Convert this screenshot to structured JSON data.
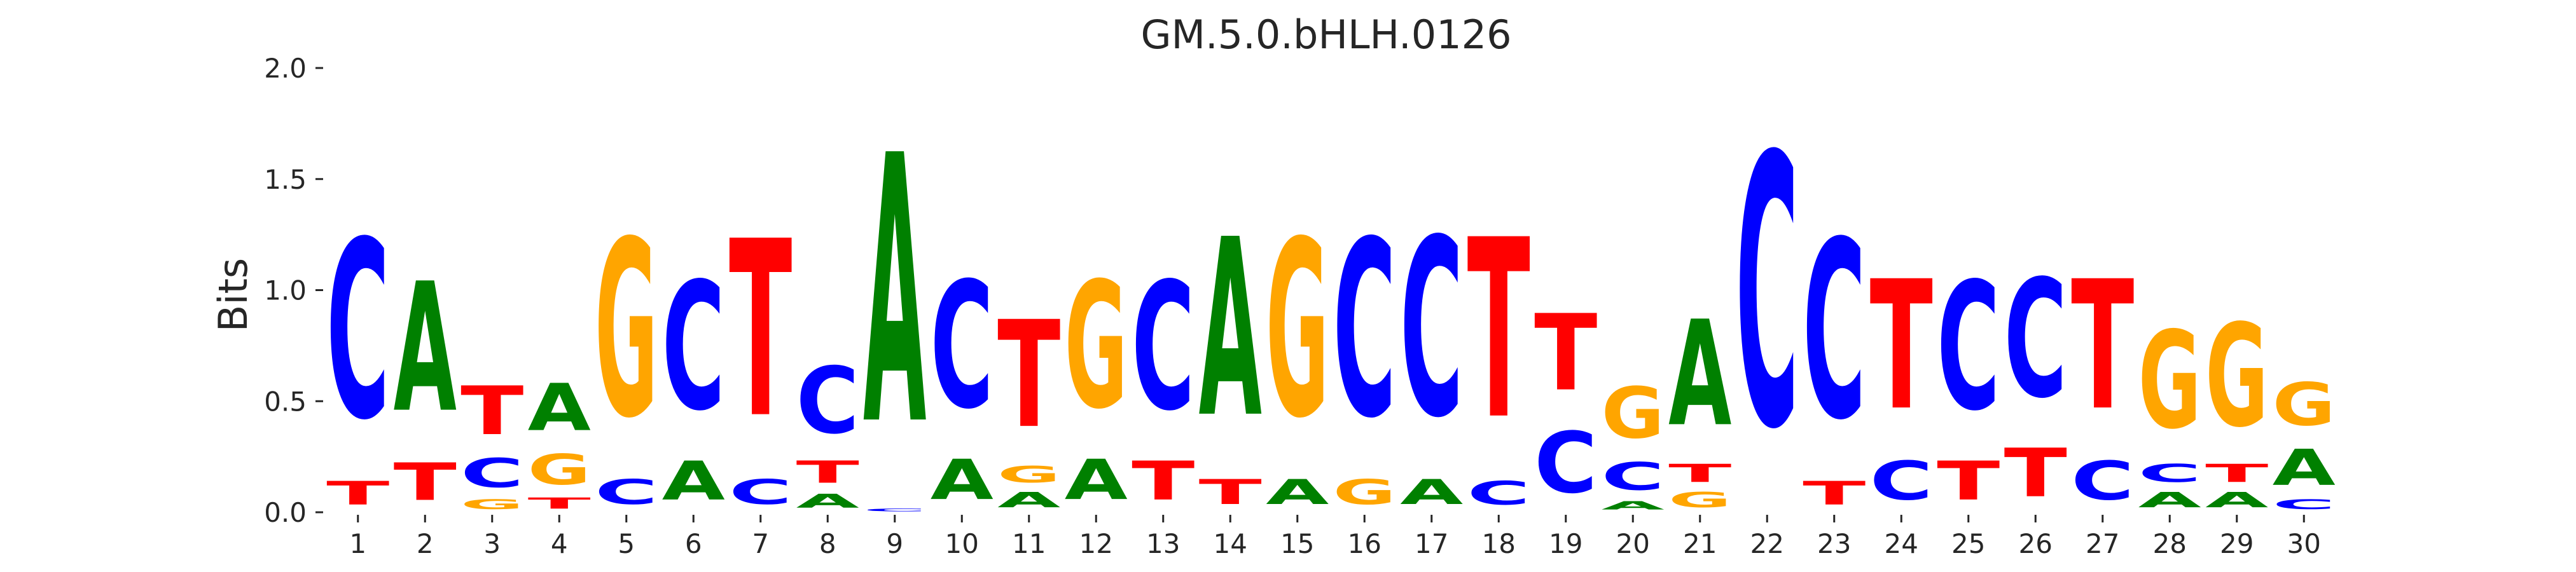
{
  "chart_data": {
    "type": "sequence-logo",
    "title": "GM.5.0.bHLH.0126",
    "xlabel": "",
    "ylabel": "Bits",
    "ylim": [
      0,
      2.0
    ],
    "yticks": [
      "0.0",
      "0.5",
      "1.0",
      "1.5",
      "2.0"
    ],
    "grid": false,
    "colors": {
      "A": "#008000",
      "C": "#0000ff",
      "G": "#ffa500",
      "T": "#ff0000"
    },
    "positions": [
      {
        "pos": "1",
        "letters": [
          [
            "T",
            0.17
          ],
          [
            "C",
            1.28
          ]
        ]
      },
      {
        "pos": "2",
        "letters": [
          [
            "T",
            0.27
          ],
          [
            "A",
            0.93
          ]
        ]
      },
      {
        "pos": "3",
        "letters": [
          [
            "G",
            0.07
          ],
          [
            "C",
            0.21
          ],
          [
            "T",
            0.35
          ]
        ]
      },
      {
        "pos": "4",
        "letters": [
          [
            "T",
            0.08
          ],
          [
            "G",
            0.22
          ],
          [
            "A",
            0.34
          ]
        ]
      },
      {
        "pos": "5",
        "letters": [
          [
            "C",
            0.18
          ],
          [
            "G",
            1.27
          ]
        ]
      },
      {
        "pos": "6",
        "letters": [
          [
            "A",
            0.28
          ],
          [
            "C",
            0.92
          ]
        ]
      },
      {
        "pos": "7",
        "letters": [
          [
            "C",
            0.18
          ],
          [
            "T",
            1.27
          ]
        ]
      },
      {
        "pos": "8",
        "letters": [
          [
            "A",
            0.1
          ],
          [
            "T",
            0.16
          ],
          [
            "C",
            0.48
          ]
        ]
      },
      {
        "pos": "9",
        "letters": [
          [
            "C",
            0.02
          ],
          [
            "A",
            1.93
          ]
        ]
      },
      {
        "pos": "10",
        "letters": [
          [
            "A",
            0.29
          ],
          [
            "C",
            0.91
          ]
        ]
      },
      {
        "pos": "11",
        "letters": [
          [
            "A",
            0.11
          ],
          [
            "G",
            0.12
          ],
          [
            "T",
            0.77
          ]
        ]
      },
      {
        "pos": "12",
        "letters": [
          [
            "A",
            0.29
          ],
          [
            "G",
            0.91
          ]
        ]
      },
      {
        "pos": "13",
        "letters": [
          [
            "T",
            0.28
          ],
          [
            "C",
            0.92
          ]
        ]
      },
      {
        "pos": "14",
        "letters": [
          [
            "T",
            0.18
          ],
          [
            "A",
            1.28
          ]
        ]
      },
      {
        "pos": "15",
        "letters": [
          [
            "A",
            0.18
          ],
          [
            "G",
            1.27
          ]
        ]
      },
      {
        "pos": "16",
        "letters": [
          [
            "G",
            0.18
          ],
          [
            "C",
            1.27
          ]
        ]
      },
      {
        "pos": "17",
        "letters": [
          [
            "A",
            0.18
          ],
          [
            "C",
            1.28
          ]
        ]
      },
      {
        "pos": "18",
        "letters": [
          [
            "C",
            0.17
          ],
          [
            "T",
            1.29
          ]
        ]
      },
      {
        "pos": "19",
        "letters": [
          [
            "C",
            0.44
          ],
          [
            "T",
            0.55
          ]
        ]
      },
      {
        "pos": "20",
        "letters": [
          [
            "A",
            0.06
          ],
          [
            "C",
            0.2
          ],
          [
            "G",
            0.37
          ]
        ]
      },
      {
        "pos": "21",
        "letters": [
          [
            "G",
            0.11
          ],
          [
            "T",
            0.13
          ],
          [
            "A",
            0.76
          ]
        ]
      },
      {
        "pos": "22",
        "letters": [
          [
            "C",
            1.95
          ]
        ]
      },
      {
        "pos": "23",
        "letters": [
          [
            "T",
            0.17
          ],
          [
            "C",
            1.28
          ]
        ]
      },
      {
        "pos": "24",
        "letters": [
          [
            "C",
            0.28
          ],
          [
            "T",
            0.93
          ]
        ]
      },
      {
        "pos": "25",
        "letters": [
          [
            "T",
            0.28
          ],
          [
            "C",
            0.92
          ]
        ]
      },
      {
        "pos": "26",
        "letters": [
          [
            "T",
            0.35
          ],
          [
            "C",
            0.85
          ]
        ]
      },
      {
        "pos": "27",
        "letters": [
          [
            "C",
            0.28
          ],
          [
            "T",
            0.93
          ]
        ]
      },
      {
        "pos": "28",
        "letters": [
          [
            "A",
            0.11
          ],
          [
            "C",
            0.13
          ],
          [
            "G",
            0.7
          ]
        ]
      },
      {
        "pos": "29",
        "letters": [
          [
            "A",
            0.11
          ],
          [
            "T",
            0.13
          ],
          [
            "G",
            0.74
          ]
        ]
      },
      {
        "pos": "30",
        "letters": [
          [
            "C",
            0.07
          ],
          [
            "A",
            0.26
          ],
          [
            "G",
            0.31
          ]
        ]
      }
    ]
  }
}
